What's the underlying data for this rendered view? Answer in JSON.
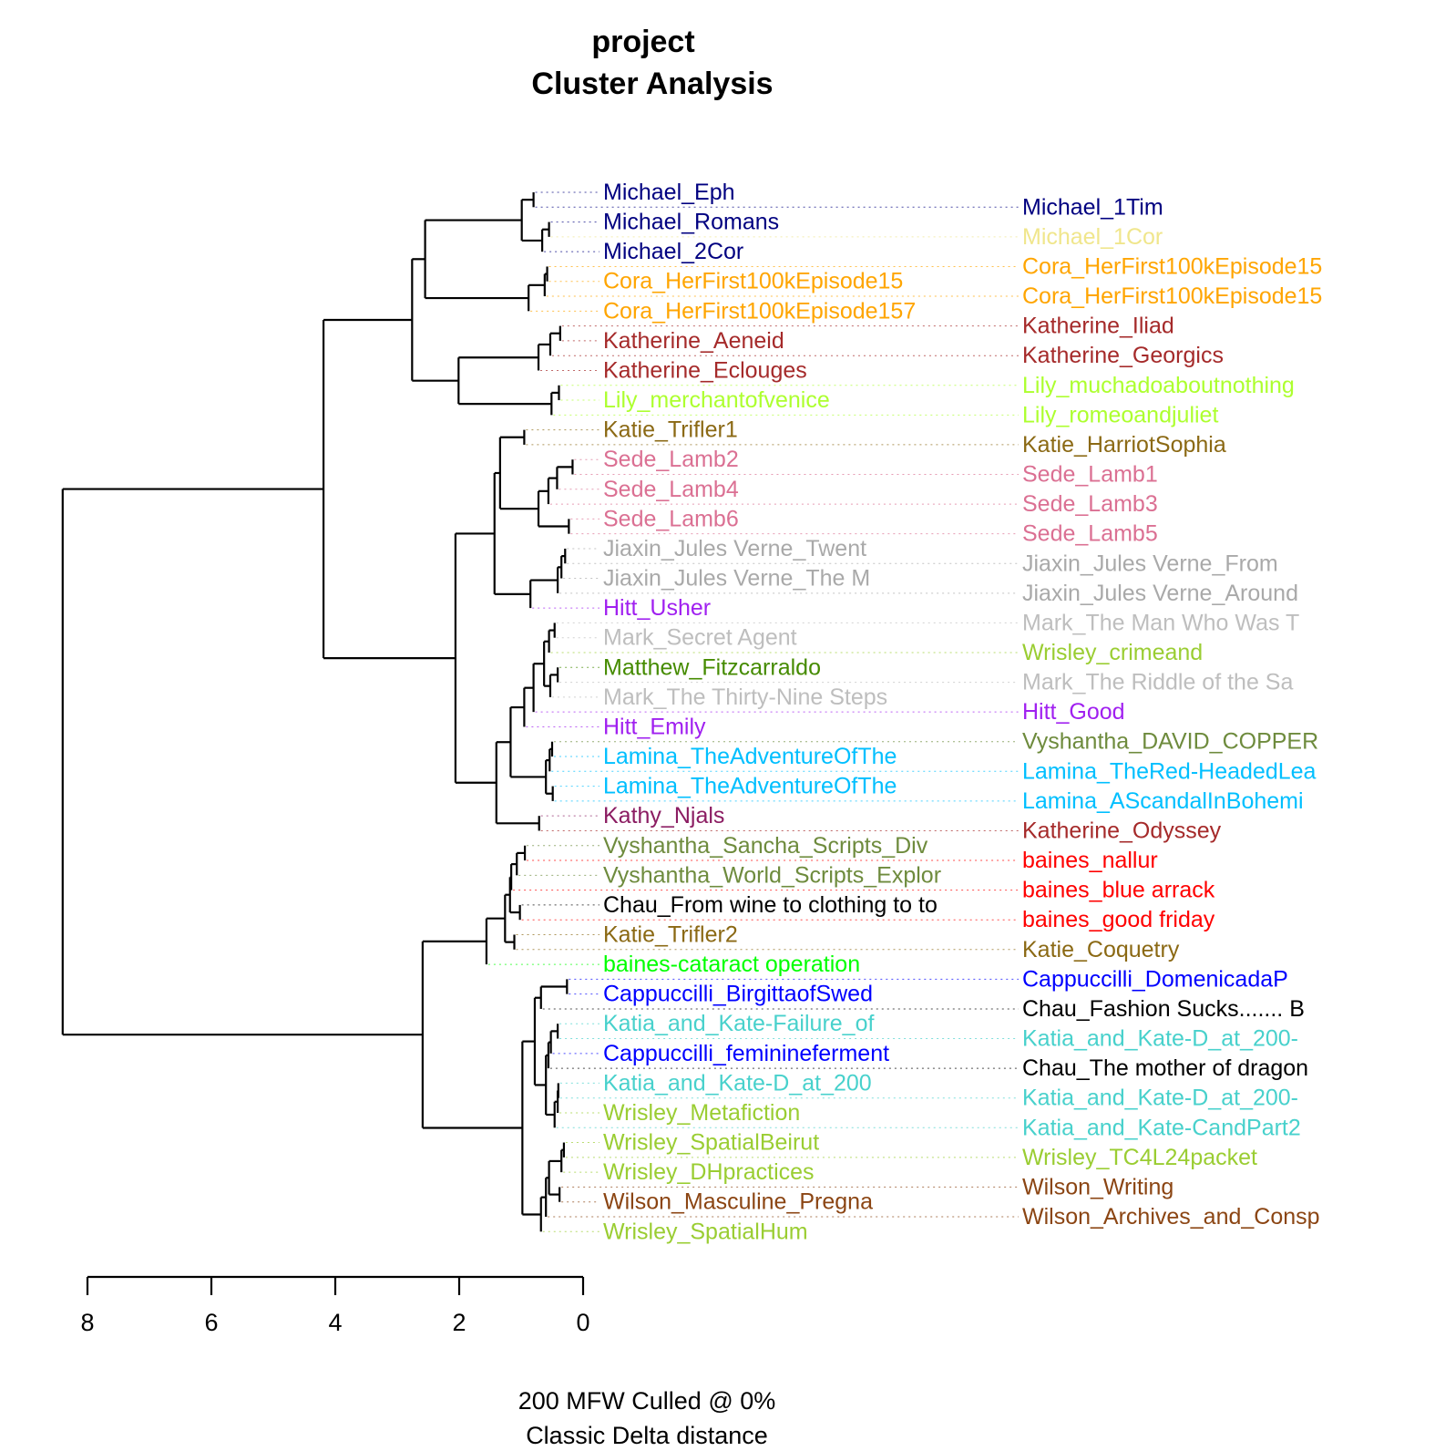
{
  "chart_data": {
    "type": "dendrogram",
    "title": "project",
    "subtitle": "Cluster Analysis",
    "xlabel_line1": "200 MFW  Culled @ 0%",
    "xlabel_line2": "Classic Delta distance",
    "xlim": [
      8,
      0
    ],
    "ticks": [
      "8",
      "6",
      "4",
      "2",
      "0"
    ],
    "tick_values": [
      8,
      6,
      4,
      2,
      0
    ],
    "leaves": [
      {
        "label": "Michael_Eph",
        "color": "#000080"
      },
      {
        "label": "Michael_1Tim",
        "color": "#000080"
      },
      {
        "label": "Michael_Romans",
        "color": "#000080"
      },
      {
        "label": "Michael_1Cor",
        "color": "#f0e68c"
      },
      {
        "label": "Michael_2Cor",
        "color": "#000080"
      },
      {
        "label": "Cora_HerFirst100kEpisode15",
        "color": "#ffa500"
      },
      {
        "label": "Cora_HerFirst100kEpisode15",
        "color": "#ffa500"
      },
      {
        "label": "Cora_HerFirst100kEpisode15",
        "color": "#ffa500"
      },
      {
        "label": "Cora_HerFirst100kEpisode157",
        "color": "#ffa500"
      },
      {
        "label": "Katherine_Iliad",
        "color": "#a52a2a"
      },
      {
        "label": "Katherine_Aeneid",
        "color": "#a52a2a"
      },
      {
        "label": "Katherine_Georgics",
        "color": "#a52a2a"
      },
      {
        "label": "Katherine_Eclouges",
        "color": "#a52a2a"
      },
      {
        "label": "Lily_muchadoaboutnothing",
        "color": "#adff2f"
      },
      {
        "label": "Lily_merchantofvenice",
        "color": "#adff2f"
      },
      {
        "label": "Lily_romeoandjuliet",
        "color": "#adff2f"
      },
      {
        "label": "Katie_Trifler1",
        "color": "#8b6914"
      },
      {
        "label": "Katie_HarriotSophia",
        "color": "#8b6914"
      },
      {
        "label": "Sede_Lamb2",
        "color": "#db7093"
      },
      {
        "label": "Sede_Lamb1",
        "color": "#db7093"
      },
      {
        "label": "Sede_Lamb4",
        "color": "#db7093"
      },
      {
        "label": "Sede_Lamb3",
        "color": "#db7093"
      },
      {
        "label": "Sede_Lamb6",
        "color": "#db7093"
      },
      {
        "label": "Sede_Lamb5",
        "color": "#db7093"
      },
      {
        "label": "Jiaxin_Jules Verne_Twent",
        "color": "#a9a9a9"
      },
      {
        "label": "Jiaxin_Jules Verne_From",
        "color": "#a9a9a9"
      },
      {
        "label": "Jiaxin_Jules Verne_The M",
        "color": "#a9a9a9"
      },
      {
        "label": "Jiaxin_Jules Verne_Around",
        "color": "#a9a9a9"
      },
      {
        "label": "Hitt_Usher",
        "color": "#a020f0"
      },
      {
        "label": "Mark_The Man Who Was T",
        "color": "#bebebe"
      },
      {
        "label": "Mark_Secret Agent",
        "color": "#bebebe"
      },
      {
        "label": "Wrisley_crimeand",
        "color": "#9acd32"
      },
      {
        "label": "Matthew_Fitzcarraldo",
        "color": "#458b00"
      },
      {
        "label": "Mark_The Riddle of the Sa",
        "color": "#bebebe"
      },
      {
        "label": "Mark_The Thirty-Nine Steps",
        "color": "#bebebe"
      },
      {
        "label": "Hitt_Good",
        "color": "#a020f0"
      },
      {
        "label": "Hitt_Emily",
        "color": "#a020f0"
      },
      {
        "label": "Vyshantha_DAVID_COPPER",
        "color": "#6e8b3d"
      },
      {
        "label": "Lamina_TheAdventureOfThe",
        "color": "#00bfff"
      },
      {
        "label": "Lamina_TheRed-HeadedLea",
        "color": "#00bfff"
      },
      {
        "label": "Lamina_TheAdventureOfThe",
        "color": "#00bfff"
      },
      {
        "label": "Lamina_AScandalInBohemi",
        "color": "#00bfff"
      },
      {
        "label": "Kathy_Njals",
        "color": "#8b1c62"
      },
      {
        "label": "Katherine_Odyssey",
        "color": "#a52a2a"
      },
      {
        "label": "Vyshantha_Sancha_Scripts_Div",
        "color": "#6e8b3d"
      },
      {
        "label": "baines_nallur",
        "color": "#ff0000"
      },
      {
        "label": "Vyshantha_World_Scripts_Explor",
        "color": "#6e8b3d"
      },
      {
        "label": "baines_blue arrack",
        "color": "#ff0000"
      },
      {
        "label": "Chau_From wine to clothing to to",
        "color": "#000000"
      },
      {
        "label": "baines_good friday",
        "color": "#ff0000"
      },
      {
        "label": "Katie_Trifler2",
        "color": "#8b6914"
      },
      {
        "label": "Katie_Coquetry",
        "color": "#8b6914"
      },
      {
        "label": "baines-cataract operation",
        "color": "#00ff00"
      },
      {
        "label": "Cappuccilli_DomenicadaP",
        "color": "#0000ff"
      },
      {
        "label": "Cappuccilli_BirgittaofSwed",
        "color": "#0000ff"
      },
      {
        "label": "Chau_Fashion Sucks....... B",
        "color": "#000000"
      },
      {
        "label": "Katia_and_Kate-Failure_of",
        "color": "#48d1cc"
      },
      {
        "label": "Katia_and_Kate-D_at_200-",
        "color": "#48d1cc"
      },
      {
        "label": "Cappuccilli_feminineferment",
        "color": "#0000ff"
      },
      {
        "label": "Chau_The mother of dragon",
        "color": "#000000"
      },
      {
        "label": "Katia_and_Kate-D_at_200",
        "color": "#48d1cc"
      },
      {
        "label": "Katia_and_Kate-D_at_200-",
        "color": "#48d1cc"
      },
      {
        "label": "Wrisley_Metafiction",
        "color": "#9acd32"
      },
      {
        "label": "Katia_and_Kate-CandPart2",
        "color": "#48d1cc"
      },
      {
        "label": "Wrisley_SpatialBeirut",
        "color": "#9acd32"
      },
      {
        "label": "Wrisley_TC4L24packet",
        "color": "#9acd32"
      },
      {
        "label": "Wrisley_DHpractices",
        "color": "#9acd32"
      },
      {
        "label": "Wilson_Writing",
        "color": "#8b4513"
      },
      {
        "label": "Wilson_Masculine_Pregna",
        "color": "#8b4513"
      },
      {
        "label": "Wilson_Archives_and_Consp",
        "color": "#8b4513"
      },
      {
        "label": "Wrisley_SpatialHum",
        "color": "#9acd32"
      }
    ],
    "tree": {
      "h": 8.4,
      "c": [
        {
          "h": 4.19,
          "c": [
            {
              "h": 2.76,
              "c": [
                {
                  "h": 2.55,
                  "c": [
                    {
                      "h": 0.99,
                      "c": [
                        {
                          "h": 0.8,
                          "c": [
                            0,
                            1
                          ]
                        },
                        {
                          "h": 0.66,
                          "c": [
                            {
                              "h": 0.55,
                              "c": [
                                2,
                                3
                              ]
                            },
                            4
                          ]
                        }
                      ]
                    },
                    {
                      "h": 0.88,
                      "c": [
                        {
                          "h": 0.62,
                          "c": [
                            {
                              "h": 0.58,
                              "c": [
                                5,
                                6
                              ]
                            },
                            7
                          ]
                        },
                        8
                      ]
                    }
                  ]
                },
                {
                  "h": 2.01,
                  "c": [
                    {
                      "h": 0.72,
                      "c": [
                        {
                          "h": 0.53,
                          "c": [
                            {
                              "h": 0.37,
                              "c": [
                                9,
                                10
                              ]
                            },
                            11
                          ]
                        },
                        12
                      ]
                    },
                    {
                      "h": 0.51,
                      "c": [
                        {
                          "h": 0.39,
                          "c": [
                            13,
                            14
                          ]
                        },
                        15
                      ]
                    }
                  ]
                }
              ]
            },
            {
              "h": 2.06,
              "c": [
                {
                  "h": 1.43,
                  "c": [
                    {
                      "h": 1.34,
                      "c": [
                        {
                          "h": 0.95,
                          "c": [
                            16,
                            17
                          ]
                        },
                        {
                          "h": 0.72,
                          "c": [
                            {
                              "h": 0.56,
                              "c": [
                                {
                                  "h": 0.42,
                                  "c": [
                                    {
                                      "h": 0.17,
                                      "c": [
                                        18,
                                        19
                                      ]
                                    },
                                    20
                                  ]
                                },
                                21
                              ]
                            },
                            {
                              "h": 0.23,
                              "c": [
                                22,
                                23
                              ]
                            }
                          ]
                        }
                      ]
                    },
                    {
                      "h": 0.85,
                      "c": [
                        {
                          "h": 0.41,
                          "c": [
                            {
                              "h": 0.35,
                              "c": [
                                {
                                  "h": 0.29,
                                  "c": [
                                    24,
                                    25
                                  ]
                                },
                                26
                              ]
                            },
                            27
                          ]
                        },
                        28
                      ]
                    }
                  ]
                },
                {
                  "h": 1.4,
                  "c": [
                    {
                      "h": 1.17,
                      "c": [
                        {
                          "h": 0.95,
                          "c": [
                            {
                              "h": 0.8,
                              "c": [
                                {
                                  "h": 0.63,
                                  "c": [
                                    {
                                      "h": 0.55,
                                      "c": [
                                        {
                                          "h": 0.46,
                                          "c": [
                                            29,
                                            30
                                          ]
                                        },
                                        31
                                      ]
                                    },
                                    {
                                      "h": 0.53,
                                      "c": [
                                        {
                                          "h": 0.41,
                                          "c": [
                                            32,
                                            33
                                          ]
                                        },
                                        34
                                      ]
                                    }
                                  ]
                                },
                                35
                              ]
                            },
                            36
                          ]
                        },
                        {
                          "h": 0.6,
                          "c": [
                            {
                              "h": 0.54,
                              "c": [
                                {
                                  "h": 0.5,
                                  "c": [
                                    37,
                                    38
                                  ]
                                },
                                39
                              ]
                            },
                            {
                              "h": 0.49,
                              "c": [
                                40,
                                41
                              ]
                            }
                          ]
                        }
                      ]
                    },
                    {
                      "h": 0.71,
                      "c": [
                        42,
                        43
                      ]
                    }
                  ]
                }
              ]
            }
          ]
        },
        {
          "h": 2.59,
          "c": [
            {
              "h": 1.56,
              "c": [
                {
                  "h": 1.26,
                  "c": [
                    {
                      "h": 1.18,
                      "c": [
                        {
                          "h": 1.16,
                          "c": [
                            {
                              "h": 1.07,
                              "c": [
                                {
                                  "h": 0.94,
                                  "c": [
                                    44,
                                    45
                                  ]
                                },
                                46
                              ]
                            },
                            47
                          ]
                        },
                        {
                          "h": 1.02,
                          "c": [
                            48,
                            49
                          ]
                        }
                      ]
                    },
                    {
                      "h": 1.11,
                      "c": [
                        50,
                        51
                      ]
                    }
                  ]
                },
                52
              ]
            },
            {
              "h": 0.98,
              "c": [
                {
                  "h": 0.78,
                  "c": [
                    {
                      "h": 0.68,
                      "c": [
                        {
                          "h": 0.26,
                          "c": [
                            53,
                            54
                          ]
                        },
                        55
                      ]
                    },
                    {
                      "h": 0.6,
                      "c": [
                        {
                          "h": 0.56,
                          "c": [
                            {
                              "h": 0.52,
                              "c": [
                                {
                                  "h": 0.41,
                                  "c": [
                                    56,
                                    57
                                  ]
                                },
                                58
                              ]
                            },
                            59
                          ]
                        },
                        {
                          "h": 0.46,
                          "c": [
                            {
                              "h": 0.41,
                              "c": [
                                {
                                  "h": 0.4,
                                  "c": [
                                    60,
                                    61
                                  ]
                                },
                                62
                              ]
                            },
                            63
                          ]
                        }
                      ]
                    }
                  ]
                },
                {
                  "h": 0.68,
                  "c": [
                    {
                      "h": 0.6,
                      "c": [
                        {
                          "h": 0.55,
                          "c": [
                            {
                              "h": 0.35,
                              "c": [
                                {
                                  "h": 0.31,
                                  "c": [
                                    64,
                                    65
                                  ]
                                },
                                66
                              ]
                            },
                            {
                              "h": 0.38,
                              "c": [
                                67,
                                68
                              ]
                            }
                          ]
                        },
                        69
                      ]
                    },
                    70
                  ]
                }
              ]
            }
          ]
        }
      ]
    },
    "grid": false,
    "legend": "none",
    "line_color": "#000000"
  }
}
